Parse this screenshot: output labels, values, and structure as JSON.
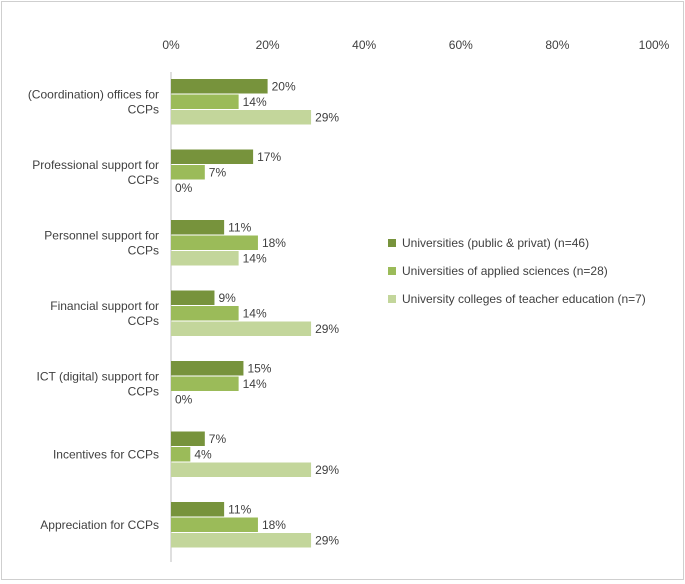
{
  "chart_data": {
    "type": "bar",
    "orientation": "horizontal",
    "title": "",
    "xlabel": "",
    "ylabel": "",
    "xlim": [
      0,
      100
    ],
    "x_ticks": [
      "0%",
      "20%",
      "40%",
      "60%",
      "80%",
      "100%"
    ],
    "x_tick_values": [
      0,
      20,
      40,
      60,
      80,
      100
    ],
    "grid": false,
    "legend_position": "right",
    "categories": [
      [
        "(Coordination) offices for",
        "CCPs"
      ],
      [
        "Professional support for",
        "CCPs"
      ],
      [
        "Personnel support for",
        "CCPs"
      ],
      [
        "Financial support for",
        "CCPs"
      ],
      [
        "ICT (digital) support for",
        "CCPs"
      ],
      [
        "Incentives for CCPs"
      ],
      [
        "Appreciation for CCPs"
      ]
    ],
    "series": [
      {
        "name": "Universities (public & privat) (n=46)",
        "color": "#77933c",
        "values": [
          20,
          17,
          11,
          9,
          15,
          7,
          11
        ],
        "labels": [
          "20%",
          "17%",
          "11%",
          "9%",
          "15%",
          "7%",
          "11%"
        ]
      },
      {
        "name": "Universities of applied sciences (n=28)",
        "color": "#9bbb59",
        "values": [
          14,
          7,
          18,
          14,
          14,
          4,
          18
        ],
        "labels": [
          "14%",
          "7%",
          "18%",
          "14%",
          "14%",
          "4%",
          "18%"
        ]
      },
      {
        "name": "University colleges of teacher education (n=7)",
        "color": "#c3d69b",
        "values": [
          29,
          0,
          14,
          29,
          0,
          29,
          29
        ],
        "labels": [
          "29%",
          "0%",
          "14%",
          "29%",
          "0%",
          "29%",
          "29%"
        ]
      }
    ]
  }
}
